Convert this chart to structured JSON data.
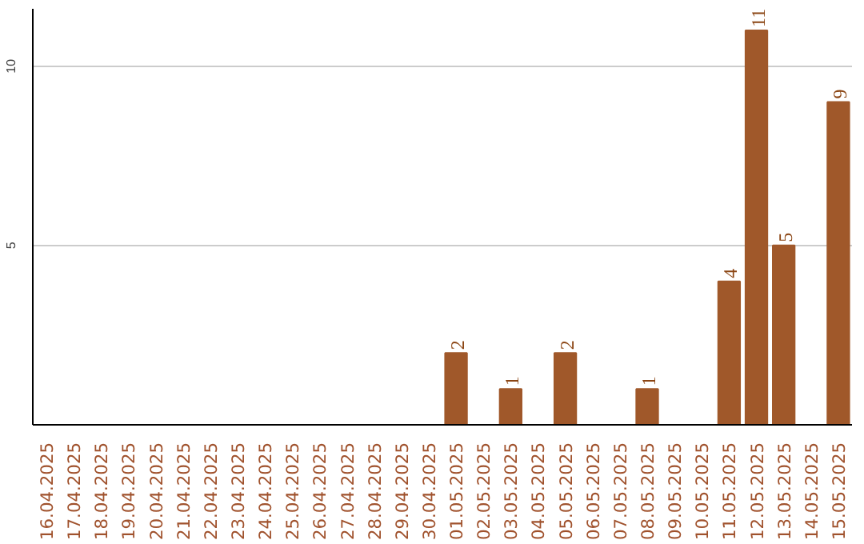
{
  "chart_data": {
    "type": "bar",
    "categories": [
      "16.04.2025",
      "17.04.2025",
      "18.04.2025",
      "19.04.2025",
      "20.04.2025",
      "21.04.2025",
      "22.04.2025",
      "23.04.2025",
      "24.04.2025",
      "25.04.2025",
      "26.04.2025",
      "27.04.2025",
      "28.04.2025",
      "29.04.2025",
      "30.04.2025",
      "01.05.2025",
      "02.05.2025",
      "03.05.2025",
      "04.05.2025",
      "05.05.2025",
      "06.05.2025",
      "07.05.2025",
      "08.05.2025",
      "09.05.2025",
      "10.05.2025",
      "11.05.2025",
      "12.05.2025",
      "13.05.2025",
      "14.05.2025",
      "15.05.2025"
    ],
    "values": [
      null,
      null,
      null,
      null,
      null,
      null,
      null,
      null,
      null,
      null,
      null,
      null,
      null,
      null,
      null,
      2,
      null,
      1,
      null,
      2,
      null,
      null,
      1,
      null,
      null,
      4,
      11,
      5,
      null,
      9
    ],
    "color": "#a0582a",
    "ylim": [
      0,
      11.6
    ],
    "yticks": [
      5,
      10
    ],
    "grid": "y",
    "data_labels": true
  }
}
